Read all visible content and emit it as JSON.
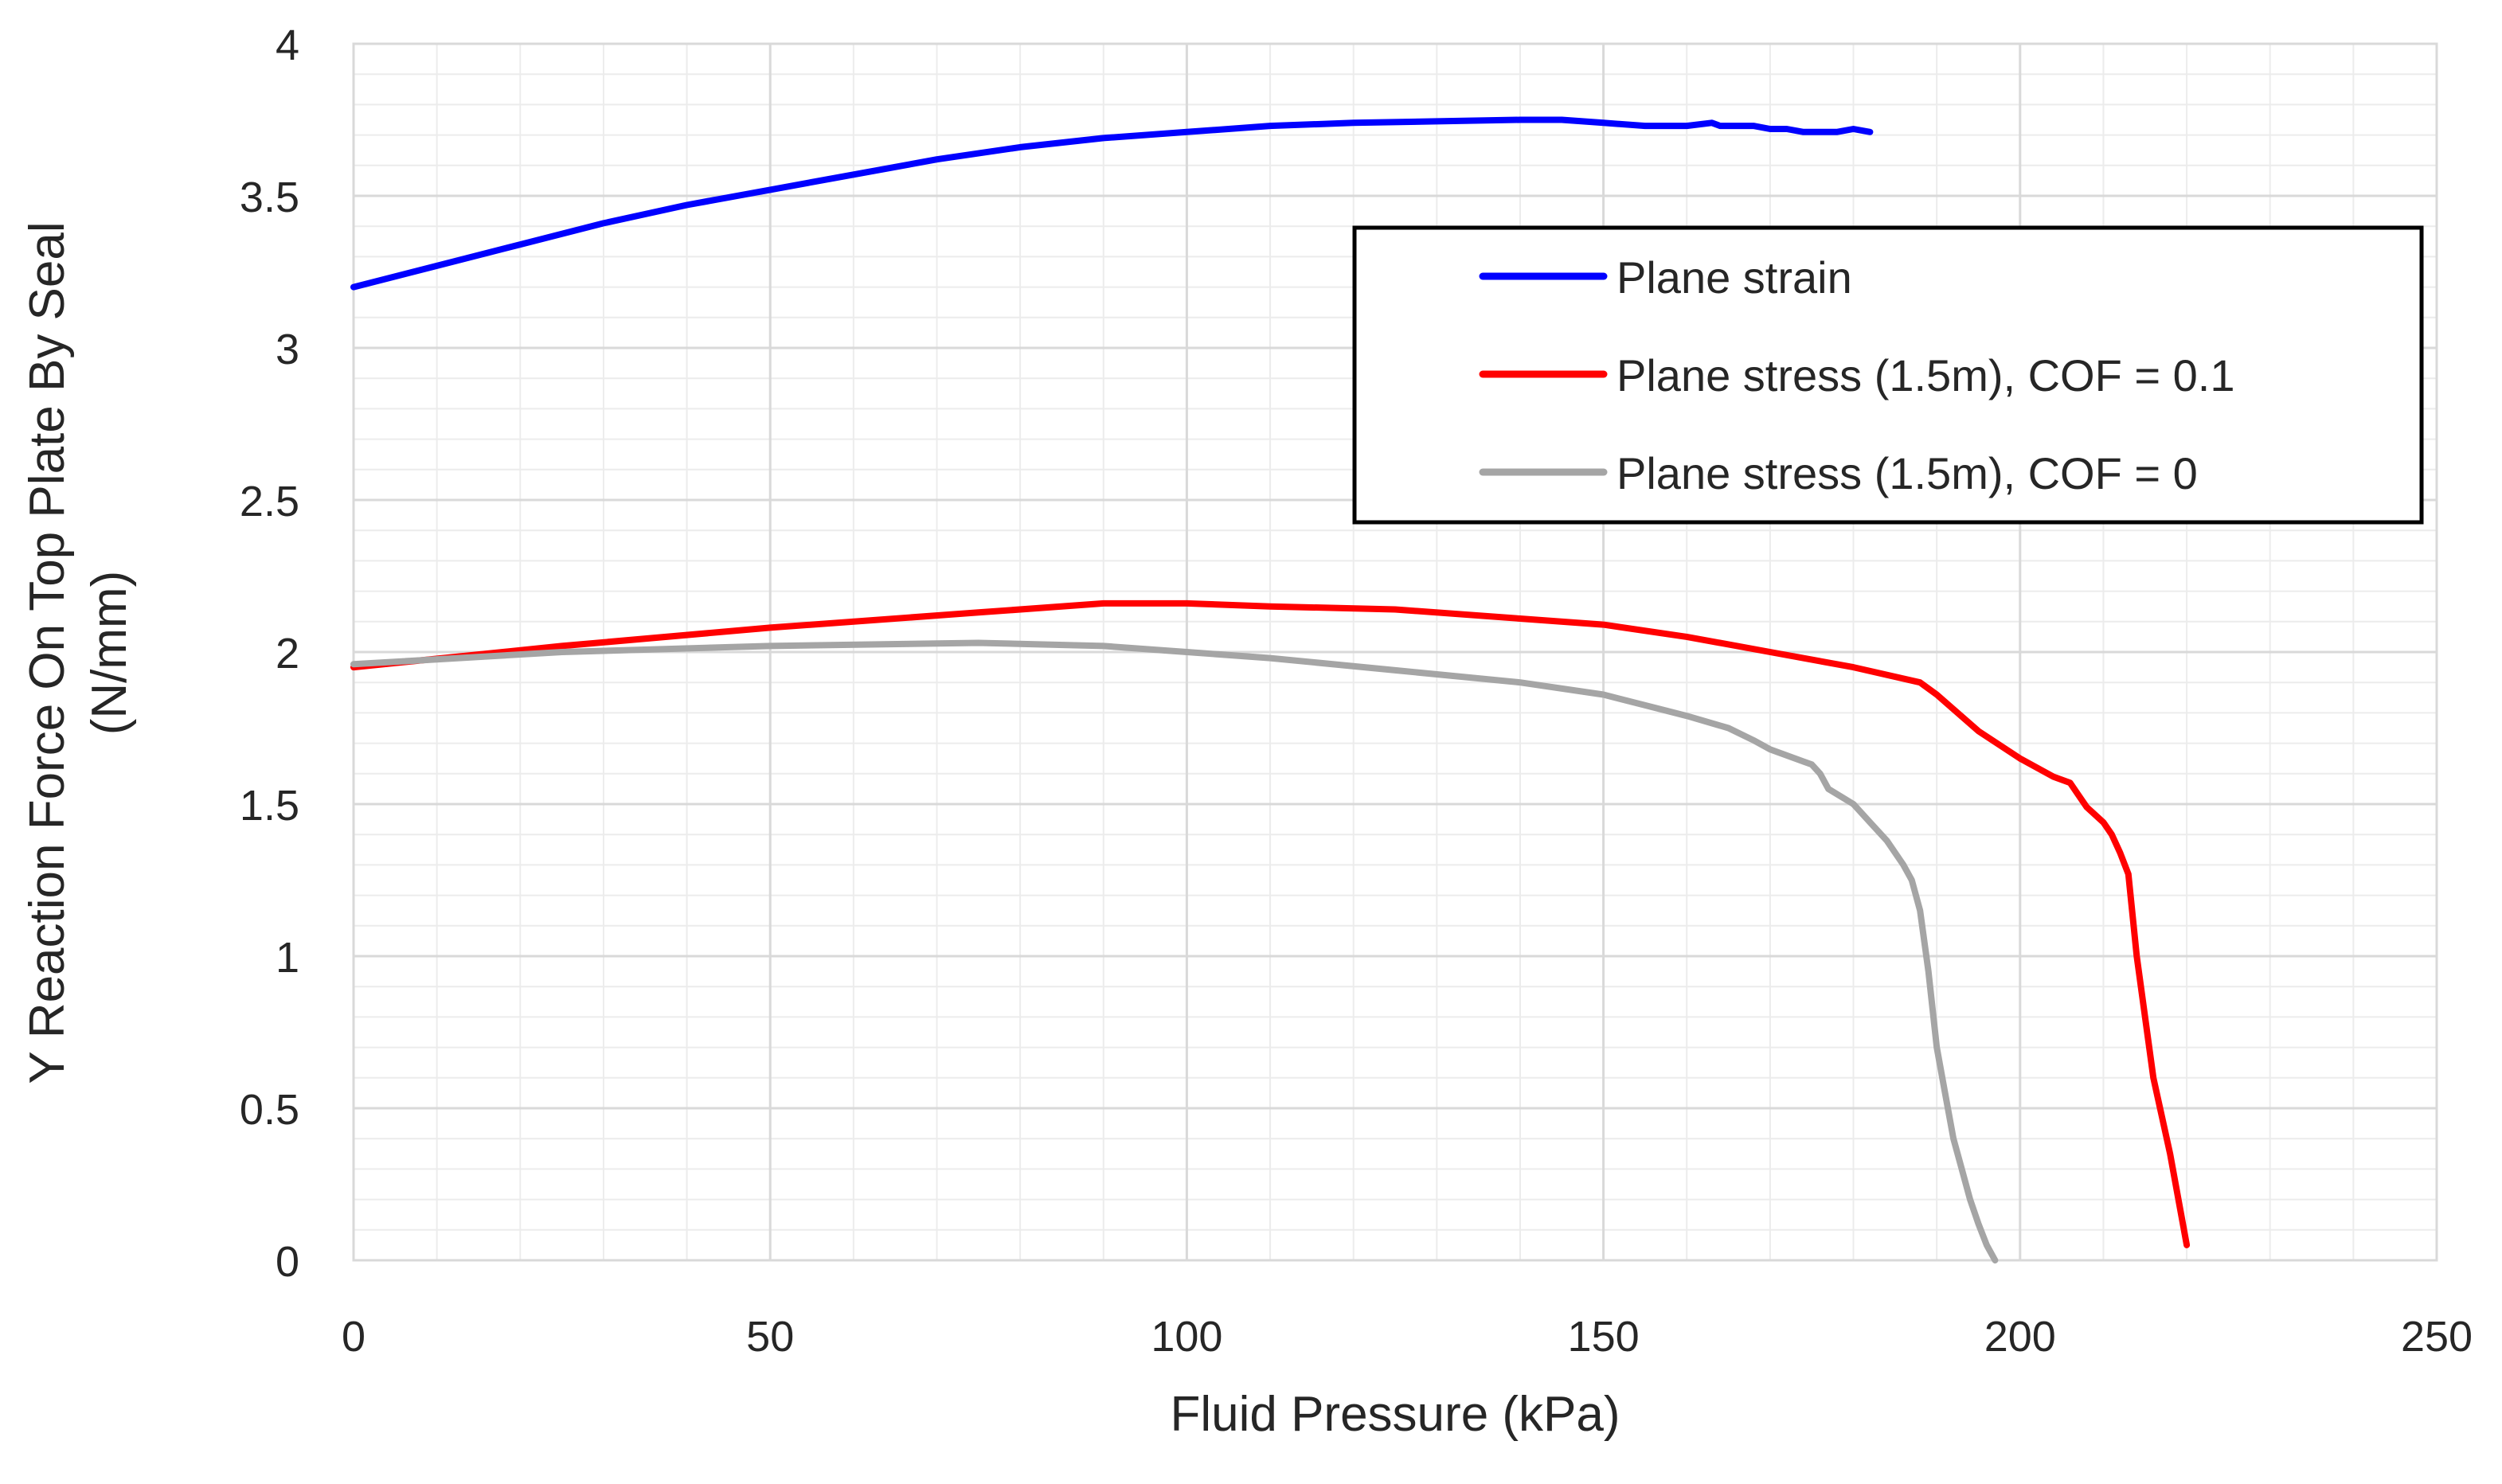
{
  "chart_data": {
    "type": "line",
    "title": "",
    "xlabel": "Fluid Pressure (kPa)",
    "ylabel_line1": "Y Reaction Force On Top Plate By Seal",
    "ylabel_line2": "(N/mm)",
    "xlim": [
      0,
      250
    ],
    "ylim": [
      0,
      4
    ],
    "x_ticks": [
      "0",
      "50",
      "100",
      "150",
      "200",
      "250"
    ],
    "y_ticks": [
      "0",
      "0.5",
      "1",
      "1.5",
      "2",
      "2.5",
      "3",
      "3.5",
      "4"
    ],
    "x_tick_values": [
      0,
      50,
      100,
      150,
      200,
      250
    ],
    "y_tick_values": [
      0,
      0.5,
      1,
      1.5,
      2,
      2.5,
      3,
      3.5,
      4
    ],
    "grid": {
      "major": true,
      "minor": true,
      "x_minor_step": 10,
      "y_minor_step": 0.1
    },
    "legend_position": "right, upper-middle",
    "series": [
      {
        "name": "Plane strain",
        "color": "#0000ff",
        "x": [
          0,
          10,
          20,
          30,
          40,
          50,
          60,
          70,
          80,
          90,
          100,
          110,
          120,
          130,
          140,
          145,
          150,
          155,
          160,
          163,
          164,
          166,
          168,
          170,
          172,
          174,
          176,
          178,
          180,
          182
        ],
        "y": [
          3.2,
          3.27,
          3.34,
          3.41,
          3.47,
          3.52,
          3.57,
          3.62,
          3.66,
          3.69,
          3.71,
          3.73,
          3.74,
          3.745,
          3.75,
          3.75,
          3.74,
          3.73,
          3.73,
          3.74,
          3.73,
          3.73,
          3.73,
          3.72,
          3.72,
          3.71,
          3.71,
          3.71,
          3.72,
          3.71
        ]
      },
      {
        "name": "Plane stress (1.5m), COF = 0.1",
        "color": "#ff0000",
        "x": [
          0,
          25,
          50,
          75,
          90,
          100,
          110,
          125,
          140,
          150,
          160,
          170,
          180,
          188,
          190,
          195,
          200,
          204,
          206,
          207,
          208,
          210,
          211,
          212,
          213,
          214,
          216,
          218,
          220
        ],
        "y": [
          1.95,
          2.02,
          2.08,
          2.13,
          2.16,
          2.16,
          2.15,
          2.14,
          2.11,
          2.09,
          2.05,
          2.0,
          1.95,
          1.9,
          1.86,
          1.74,
          1.65,
          1.59,
          1.57,
          1.53,
          1.49,
          1.44,
          1.4,
          1.34,
          1.27,
          1.0,
          0.6,
          0.35,
          0.05
        ]
      },
      {
        "name": "Plane stress (1.5m), COF = 0",
        "color": "#a5a5a5",
        "x": [
          0,
          25,
          50,
          75,
          90,
          100,
          110,
          125,
          140,
          150,
          160,
          165,
          168,
          170,
          172,
          174,
          175,
          176,
          177,
          180,
          182,
          184,
          186,
          187,
          188,
          189,
          190,
          191,
          192,
          193,
          194,
          195,
          196,
          197
        ],
        "y": [
          1.96,
          2.0,
          2.02,
          2.03,
          2.02,
          2.0,
          1.98,
          1.94,
          1.9,
          1.86,
          1.79,
          1.75,
          1.71,
          1.68,
          1.66,
          1.64,
          1.63,
          1.6,
          1.55,
          1.5,
          1.44,
          1.38,
          1.3,
          1.25,
          1.15,
          0.95,
          0.7,
          0.55,
          0.4,
          0.3,
          0.2,
          0.12,
          0.05,
          0.0
        ]
      }
    ]
  }
}
